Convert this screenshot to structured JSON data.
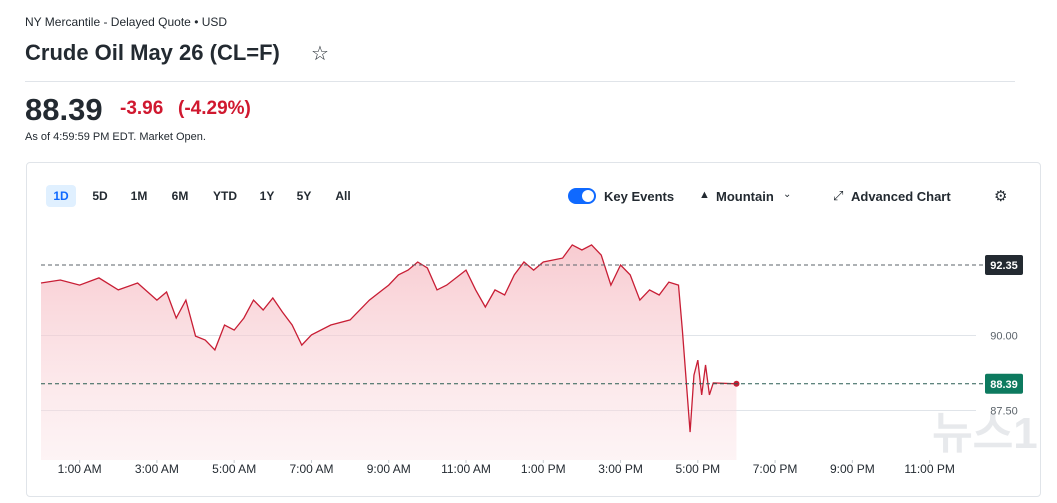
{
  "header": {
    "exchange": "NY Mercantile - Delayed Quote • USD",
    "title": "Crude Oil May 26 (CL=F)"
  },
  "quote": {
    "price": "88.39",
    "change": "-3.96",
    "change_percent": "(-4.29%)",
    "as_of": "As of 4:59:59 PM EDT. Market Open."
  },
  "toolbar": {
    "ranges": [
      "1D",
      "5D",
      "1M",
      "6M",
      "YTD",
      "1Y",
      "5Y",
      "All"
    ],
    "key_events": "Key Events",
    "chart_type": "Mountain",
    "advanced": "Advanced Chart"
  },
  "watermark": "뉴스1",
  "chart_data": {
    "type": "area",
    "x": [
      0,
      0.5,
      1,
      1.5,
      2,
      2.5,
      3,
      3.25,
      3.5,
      3.75,
      4,
      4.25,
      4.5,
      4.75,
      5,
      5.25,
      5.5,
      5.75,
      6,
      6.25,
      6.5,
      6.75,
      7,
      7.5,
      8,
      8.5,
      9,
      9.25,
      9.5,
      9.75,
      10,
      10.25,
      10.5,
      11,
      11.25,
      11.5,
      11.75,
      12,
      12.25,
      12.5,
      12.75,
      13,
      13.5,
      13.75,
      14,
      14.25,
      14.5,
      14.75,
      15,
      15.25,
      15.5,
      15.75,
      16,
      16.25,
      16.5,
      16.6,
      16.8,
      16.9,
      17,
      17.1,
      17.2,
      17.3,
      17.4,
      18
    ],
    "series": [
      {
        "color": "#c81e35",
        "values": [
          91.75,
          91.85,
          91.68,
          91.92,
          91.52,
          91.75,
          91.18,
          91.45,
          90.58,
          91.18,
          89.98,
          89.85,
          89.52,
          90.35,
          90.18,
          90.58,
          91.18,
          90.85,
          91.25,
          90.78,
          90.35,
          89.68,
          90.02,
          90.35,
          90.52,
          91.18,
          91.68,
          92.02,
          92.18,
          92.45,
          92.25,
          91.52,
          91.68,
          92.18,
          91.52,
          90.95,
          91.52,
          91.35,
          92.02,
          92.45,
          92.18,
          92.45,
          92.58,
          93.02,
          92.85,
          93.02,
          92.68,
          91.68,
          92.35,
          92.02,
          91.18,
          91.52,
          91.35,
          91.78,
          91.68,
          90.18,
          86.78,
          88.68,
          89.18,
          88.02,
          89.02,
          88.02,
          88.42,
          88.39
        ]
      }
    ],
    "xlim": [
      0,
      24.2
    ],
    "xticks": [
      {
        "value": 1,
        "label": "1:00 AM"
      },
      {
        "value": 3,
        "label": "3:00 AM"
      },
      {
        "value": 5,
        "label": "5:00 AM"
      },
      {
        "value": 7,
        "label": "7:00 AM"
      },
      {
        "value": 9,
        "label": "9:00 AM"
      },
      {
        "value": 11,
        "label": "11:00 AM"
      },
      {
        "value": 13,
        "label": "1:00 PM"
      },
      {
        "value": 15,
        "label": "3:00 PM"
      },
      {
        "value": 17,
        "label": "5:00 PM"
      },
      {
        "value": 19,
        "label": "7:00 PM"
      },
      {
        "value": 21,
        "label": "9:00 PM"
      },
      {
        "value": 23,
        "label": "11:00 PM"
      }
    ],
    "ylim": [
      85.85,
      93.35
    ],
    "yticks": [
      {
        "value": 87.5,
        "label": "87.50"
      },
      {
        "value": 90,
        "label": "90.00"
      }
    ],
    "previous_close": 92.35,
    "last": 88.39
  }
}
